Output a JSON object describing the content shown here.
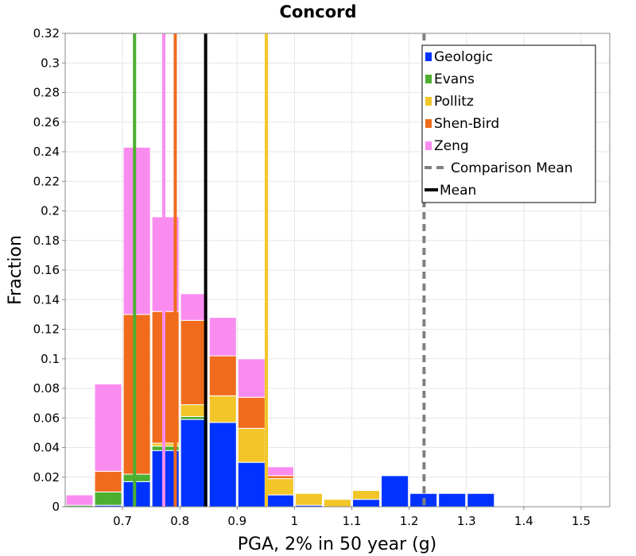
{
  "chart_data": {
    "type": "bar",
    "stacked": true,
    "title": "Concord",
    "xlabel": "PGA, 2% in 50 year (g)",
    "ylabel": "Fraction",
    "xlim": [
      0.6,
      1.55
    ],
    "ylim": [
      0,
      0.32
    ],
    "xticks": [
      "0.7",
      "0.8",
      "0.9",
      "1",
      "1.1",
      "1.2",
      "1.3",
      "1.4",
      "1.5"
    ],
    "yticks": [
      "0",
      "0.02",
      "0.04",
      "0.06",
      "0.08",
      "0.1",
      "0.12",
      "0.14",
      "0.16",
      "0.18",
      "0.2",
      "0.22",
      "0.24",
      "0.26",
      "0.28",
      "0.3",
      "0.32"
    ],
    "grid": true,
    "legend_position": "top-right",
    "bin_width": 0.05,
    "bin_starts": [
      0.6,
      0.65,
      0.7,
      0.75,
      0.8,
      0.85,
      0.9,
      0.95,
      1.0,
      1.05,
      1.1,
      1.15,
      1.2,
      1.25,
      1.3
    ],
    "series": [
      {
        "name": "Geologic",
        "color": "#0033ff",
        "values": [
          0.0,
          0.001,
          0.017,
          0.038,
          0.059,
          0.057,
          0.03,
          0.008,
          0.001,
          0.0,
          0.005,
          0.021,
          0.009,
          0.009,
          0.009
        ]
      },
      {
        "name": "Evans",
        "color": "#4caf30",
        "values": [
          0.001,
          0.009,
          0.005,
          0.003,
          0.002,
          0.0,
          0.0,
          0.0,
          0.0,
          0.0,
          0.0,
          0.0,
          0.0,
          0.0,
          0.0
        ]
      },
      {
        "name": "Pollitz",
        "color": "#f2c628",
        "values": [
          0.0,
          0.0,
          0.0,
          0.002,
          0.008,
          0.018,
          0.023,
          0.011,
          0.008,
          0.005,
          0.006,
          0.0,
          0.0,
          0.0,
          0.0
        ]
      },
      {
        "name": "Shen-Bird",
        "color": "#f06c1c",
        "values": [
          0.0,
          0.014,
          0.108,
          0.089,
          0.057,
          0.027,
          0.021,
          0.002,
          0.0,
          0.0,
          0.0,
          0.0,
          0.0,
          0.0,
          0.0
        ]
      },
      {
        "name": "Zeng",
        "color": "#fa8cf0",
        "values": [
          0.007,
          0.059,
          0.113,
          0.064,
          0.018,
          0.026,
          0.026,
          0.006,
          0.0,
          0.0,
          0.0,
          0.0,
          0.0,
          0.0,
          0.0
        ]
      }
    ],
    "vertical_lines": [
      {
        "series": "Evans",
        "x": 0.721,
        "color": "#4caf30",
        "style": "solid",
        "in_legend": false
      },
      {
        "series": "Zeng",
        "x": 0.772,
        "color": "#fa8cf0",
        "style": "solid",
        "in_legend": false
      },
      {
        "series": "Shen-Bird",
        "x": 0.792,
        "color": "#f06c1c",
        "style": "solid",
        "in_legend": false
      },
      {
        "series": "Pollitz",
        "x": 0.951,
        "color": "#f2c628",
        "style": "solid",
        "in_legend": false
      },
      {
        "series": "Comparison Mean",
        "x": 1.226,
        "color": "#808080",
        "style": "dashed",
        "in_legend": true
      },
      {
        "series": "Mean",
        "x": 0.845,
        "color": "#000000",
        "style": "solid",
        "in_legend": true
      }
    ],
    "legend": [
      {
        "label": "Geologic",
        "color": "#0033ff",
        "kind": "box"
      },
      {
        "label": "Evans",
        "color": "#4caf30",
        "kind": "box"
      },
      {
        "label": "Pollitz",
        "color": "#f2c628",
        "kind": "box"
      },
      {
        "label": "Shen-Bird",
        "color": "#f06c1c",
        "kind": "box"
      },
      {
        "label": "Zeng",
        "color": "#fa8cf0",
        "kind": "box"
      },
      {
        "label": "Comparison Mean",
        "color": "#808080",
        "kind": "dashed"
      },
      {
        "label": "Mean",
        "color": "#000000",
        "kind": "line"
      }
    ]
  }
}
